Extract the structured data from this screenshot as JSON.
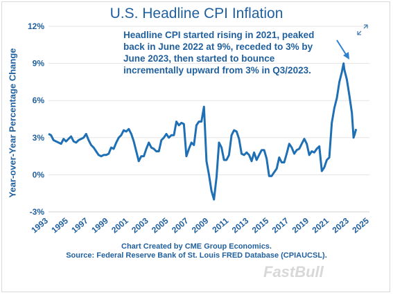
{
  "chart_data": {
    "type": "line",
    "title": "U.S. Headline CPI Inflation",
    "ylabel": "Year-over-Year Percentage Change",
    "xlabel": "",
    "ylim": [
      -3,
      12
    ],
    "xlim": [
      1993,
      2025
    ],
    "yticks": [
      "12%",
      "9%",
      "6%",
      "3%",
      "0%",
      "-3%"
    ],
    "ytick_values": [
      12,
      9,
      6,
      3,
      0,
      -3
    ],
    "xticks": [
      "1993",
      "1995",
      "1997",
      "1999",
      "2001",
      "2003",
      "2005",
      "2007",
      "2009",
      "2011",
      "2013",
      "2015",
      "2017",
      "2019",
      "2021",
      "2023",
      "2025"
    ],
    "xtick_values": [
      1993,
      1995,
      1997,
      1999,
      2001,
      2003,
      2005,
      2007,
      2009,
      2011,
      2013,
      2015,
      2017,
      2019,
      2021,
      2023,
      2025
    ],
    "grid": "horizontal",
    "line_color": "#1f6fb5",
    "series": [
      {
        "x": [
          1993.0,
          1993.25,
          1993.5,
          1993.75,
          1994.0,
          1994.25,
          1994.5,
          1994.75,
          1995.0,
          1995.25,
          1995.5,
          1995.75,
          1996.0,
          1996.25,
          1996.5,
          1996.75,
          1997.0,
          1997.25,
          1997.5,
          1997.75,
          1998.0,
          1998.25,
          1998.5,
          1998.75,
          1999.0,
          1999.25,
          1999.5,
          1999.75,
          2000.0,
          2000.25,
          2000.5,
          2000.75,
          2001.0,
          2001.25,
          2001.5,
          2001.75,
          2002.0,
          2002.25,
          2002.5,
          2002.75,
          2003.0,
          2003.25,
          2003.5,
          2003.75,
          2004.0,
          2004.25,
          2004.5,
          2004.75,
          2005.0,
          2005.25,
          2005.5,
          2005.75,
          2006.0,
          2006.25,
          2006.5,
          2006.75,
          2007.0,
          2007.25,
          2007.5,
          2007.75,
          2008.0,
          2008.25,
          2008.5,
          2008.75,
          2009.0,
          2009.25,
          2009.5,
          2009.75,
          2010.0,
          2010.25,
          2010.5,
          2010.75,
          2011.0,
          2011.25,
          2011.5,
          2011.75,
          2012.0,
          2012.25,
          2012.5,
          2012.75,
          2013.0,
          2013.25,
          2013.5,
          2013.75,
          2014.0,
          2014.25,
          2014.5,
          2014.75,
          2015.0,
          2015.25,
          2015.5,
          2015.75,
          2016.0,
          2016.25,
          2016.5,
          2016.75,
          2017.0,
          2017.25,
          2017.5,
          2017.75,
          2018.0,
          2018.25,
          2018.5,
          2018.75,
          2019.0,
          2019.25,
          2019.5,
          2019.75,
          2020.0,
          2020.25,
          2020.5,
          2020.75,
          2021.0,
          2021.25,
          2021.5,
          2021.75,
          2022.0,
          2022.25,
          2022.42,
          2022.5,
          2022.75,
          2023.0,
          2023.25,
          2023.42,
          2023.5,
          2023.67
        ],
        "y": [
          3.3,
          3.2,
          2.8,
          2.7,
          2.6,
          2.5,
          2.9,
          2.7,
          2.9,
          3.1,
          2.7,
          2.6,
          2.8,
          2.9,
          3.0,
          3.3,
          2.8,
          2.4,
          2.2,
          1.9,
          1.6,
          1.5,
          1.6,
          1.6,
          1.7,
          2.2,
          2.1,
          2.6,
          3.0,
          3.2,
          3.6,
          3.5,
          3.7,
          3.3,
          2.7,
          1.9,
          1.1,
          1.5,
          1.5,
          2.1,
          2.6,
          2.2,
          2.1,
          1.9,
          1.9,
          2.8,
          3.0,
          3.3,
          3.0,
          3.2,
          3.2,
          4.3,
          4.0,
          4.2,
          4.1,
          1.5,
          2.1,
          2.6,
          2.4,
          4.0,
          4.3,
          4.3,
          5.5,
          1.1,
          0.0,
          -1.3,
          -2.0,
          -0.2,
          2.6,
          2.2,
          1.2,
          1.2,
          1.6,
          3.2,
          3.6,
          3.5,
          2.9,
          1.7,
          1.6,
          1.8,
          1.6,
          1.1,
          1.8,
          1.2,
          1.6,
          2.0,
          2.0,
          1.3,
          -0.1,
          -0.1,
          0.2,
          0.5,
          1.4,
          1.0,
          1.0,
          1.7,
          2.5,
          2.2,
          1.7,
          2.0,
          2.1,
          2.5,
          2.9,
          2.5,
          1.6,
          1.9,
          1.8,
          2.1,
          2.3,
          0.3,
          0.6,
          1.2,
          1.4,
          4.2,
          5.4,
          6.2,
          7.5,
          8.3,
          9.0,
          8.5,
          7.7,
          6.4,
          5.0,
          3.0,
          3.2,
          3.7
        ]
      }
    ]
  },
  "annotation": {
    "lines": [
      "Headline CPI started rising in 2021, peaked",
      "back in June 2022 at 9%, receded to 3%  by",
      "June 2023, then started to bounce",
      "incrementally upward from 3%  in Q3/2023."
    ]
  },
  "credits": {
    "line1": "Chart Created by CME Group Economics.",
    "line2": "Source: Federal Reserve Bank of St. Louis FRED Database (CPIAUCSL)."
  },
  "watermark": "FastBull",
  "icons": {
    "expand": "expand-icon"
  }
}
